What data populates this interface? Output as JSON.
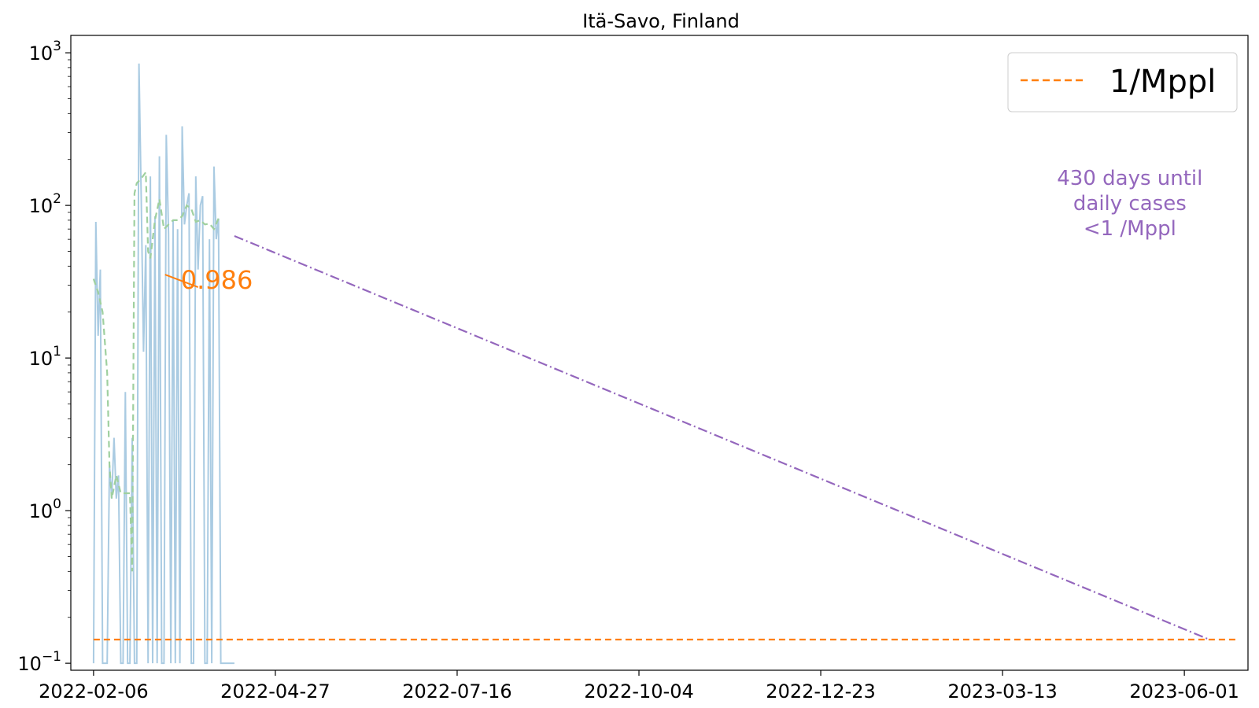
{
  "chart_data": {
    "type": "line",
    "title": "Itä-Savo, Finland",
    "xlabel": "",
    "ylabel": "",
    "y_scale": "log",
    "ylim": [
      0.09,
      1300
    ],
    "xlim": [
      "2022-01-27",
      "2023-06-29"
    ],
    "x_ticks": [
      "2022-02-06",
      "2022-04-27",
      "2022-07-16",
      "2022-10-04",
      "2022-12-23",
      "2023-03-13",
      "2023-06-01"
    ],
    "y_ticks": [
      {
        "value": 0.1,
        "base": "10",
        "exp": "−1"
      },
      {
        "value": 1,
        "base": "10",
        "exp": "0"
      },
      {
        "value": 10,
        "base": "10",
        "exp": "1"
      },
      {
        "value": 100,
        "base": "10",
        "exp": "2"
      },
      {
        "value": 1000,
        "base": "10",
        "exp": "3"
      }
    ],
    "grid": false,
    "legend": {
      "position": "top-right",
      "entries": [
        "1/Mppl"
      ]
    },
    "series": [
      {
        "name": "",
        "role": "daily cases",
        "color": "#aacbe2",
        "style": "solid",
        "x": [
          "2022-02-06",
          "2022-02-07",
          "2022-02-08",
          "2022-02-09",
          "2022-02-10",
          "2022-02-11",
          "2022-02-12",
          "2022-02-13",
          "2022-02-14",
          "2022-02-15",
          "2022-02-16",
          "2022-02-17",
          "2022-02-18",
          "2022-02-19",
          "2022-02-20",
          "2022-02-21",
          "2022-02-22",
          "2022-02-23",
          "2022-02-24",
          "2022-02-25",
          "2022-02-26",
          "2022-02-27",
          "2022-02-28",
          "2022-03-01",
          "2022-03-02",
          "2022-03-03",
          "2022-03-04",
          "2022-03-05",
          "2022-03-06",
          "2022-03-07",
          "2022-03-08",
          "2022-03-09",
          "2022-03-10",
          "2022-03-11",
          "2022-03-12",
          "2022-03-13",
          "2022-03-14",
          "2022-03-15",
          "2022-03-16",
          "2022-03-17",
          "2022-03-18",
          "2022-03-19",
          "2022-03-20",
          "2022-03-21",
          "2022-03-22",
          "2022-03-23",
          "2022-03-24",
          "2022-03-25",
          "2022-03-26",
          "2022-03-27",
          "2022-03-28",
          "2022-03-29",
          "2022-03-30",
          "2022-03-31",
          "2022-04-01",
          "2022-04-02",
          "2022-04-03",
          "2022-04-04",
          "2022-04-05",
          "2022-04-06",
          "2022-04-07",
          "2022-04-08",
          "2022-04-09"
        ],
        "y": [
          0.1,
          78,
          14,
          38,
          0.1,
          0.1,
          0.1,
          2,
          1.2,
          3,
          1.2,
          1.7,
          0.1,
          0.1,
          6,
          0.1,
          0.1,
          3,
          0.1,
          0.1,
          850,
          110,
          11,
          55,
          0.1,
          155,
          0.1,
          85,
          0.1,
          210,
          0.1,
          0.1,
          290,
          65,
          0.1,
          80,
          0.1,
          70,
          0.1,
          330,
          75,
          100,
          120,
          0.1,
          0.1,
          155,
          38,
          100,
          115,
          0.1,
          0.1,
          60,
          0.1,
          180,
          60,
          82,
          0.1,
          0.1,
          0.1,
          0.1,
          0.1,
          0.1,
          0.1
        ]
      },
      {
        "name": "",
        "role": "7-day average",
        "color": "#9fd09f",
        "style": "dashed",
        "x": [
          "2022-02-06",
          "2022-02-08",
          "2022-02-10",
          "2022-02-12",
          "2022-02-13",
          "2022-02-14",
          "2022-02-16",
          "2022-02-18",
          "2022-02-20",
          "2022-02-22",
          "2022-02-23",
          "2022-02-24",
          "2022-02-25",
          "2022-02-27",
          "2022-03-01",
          "2022-03-02",
          "2022-03-03",
          "2022-03-05",
          "2022-03-07",
          "2022-03-09",
          "2022-03-11",
          "2022-03-13",
          "2022-03-15",
          "2022-03-17",
          "2022-03-19",
          "2022-03-21",
          "2022-03-23",
          "2022-03-25",
          "2022-03-27",
          "2022-03-29",
          "2022-03-31",
          "2022-04-02"
        ],
        "y": [
          33,
          27,
          20,
          8,
          2,
          1.2,
          1.7,
          1.3,
          1.3,
          1.3,
          0.4,
          120,
          140,
          150,
          165,
          50,
          45,
          80,
          110,
          70,
          75,
          80,
          80,
          85,
          100,
          95,
          78,
          80,
          75,
          76,
          70,
          82
        ]
      },
      {
        "name": "",
        "role": "projection",
        "color": "#9467bd",
        "style": "dashdot",
        "x": [
          "2022-04-09",
          "2023-06-12"
        ],
        "y": [
          63,
          0.143
        ]
      },
      {
        "name": "1/Mppl",
        "color": "#ff7f0e",
        "style": "dashed",
        "x": [
          "2022-02-06",
          "2023-06-24"
        ],
        "y": [
          0.143,
          0.143
        ]
      }
    ],
    "annotations": [
      {
        "text": "0.986",
        "color": "#ff7f0e",
        "x": "2022-03-24",
        "y": 32
      },
      {
        "lines": [
          "430 days until",
          "daily cases",
          "<1 /Mppl"
        ],
        "color": "#9467bd",
        "x": "2023-05-08",
        "y": 150
      }
    ]
  }
}
